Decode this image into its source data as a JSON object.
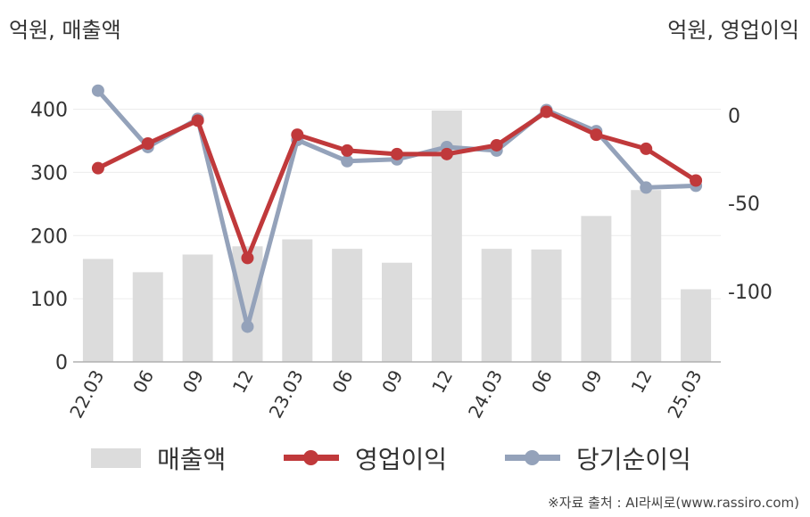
{
  "chart_data": {
    "type": "bar+line",
    "left_unit": "억원, 매출액",
    "right_unit": "억원, 영업이익",
    "categories": [
      "22.03",
      "06",
      "09",
      "12",
      "23.03",
      "06",
      "09",
      "12",
      "24.03",
      "06",
      "09",
      "12",
      "25.03"
    ],
    "left_axis": {
      "ticks": [
        "0",
        "100",
        "200",
        "300",
        "400"
      ],
      "range": [
        0,
        460
      ]
    },
    "right_axis": {
      "ticks": [
        "0",
        "-50",
        "-100"
      ],
      "range": [
        -140,
        25
      ]
    },
    "series": [
      {
        "name": "매출액",
        "kind": "bar",
        "axis": "left",
        "color": "#dcdcdc",
        "values": [
          163,
          142,
          170,
          183,
          194,
          179,
          157,
          398,
          179,
          178,
          231,
          272,
          115
        ]
      },
      {
        "name": "영업이익",
        "kind": "line",
        "axis": "right",
        "color": "#c0393b",
        "values": [
          -30,
          -16,
          -3,
          -81,
          -11,
          -20,
          -22,
          -22,
          -17,
          2,
          -11,
          -19,
          -37
        ]
      },
      {
        "name": "당기순이익",
        "kind": "line",
        "axis": "right",
        "color": "#94a2ba",
        "values": [
          14,
          -18,
          -2,
          -120,
          -14,
          -26,
          -25,
          -18,
          -20,
          3,
          -9,
          -41,
          -40
        ]
      }
    ],
    "grid": true,
    "legend_position": "bottom"
  },
  "source": "※자료 출처 : AI라씨로(www.rassiro.com)"
}
